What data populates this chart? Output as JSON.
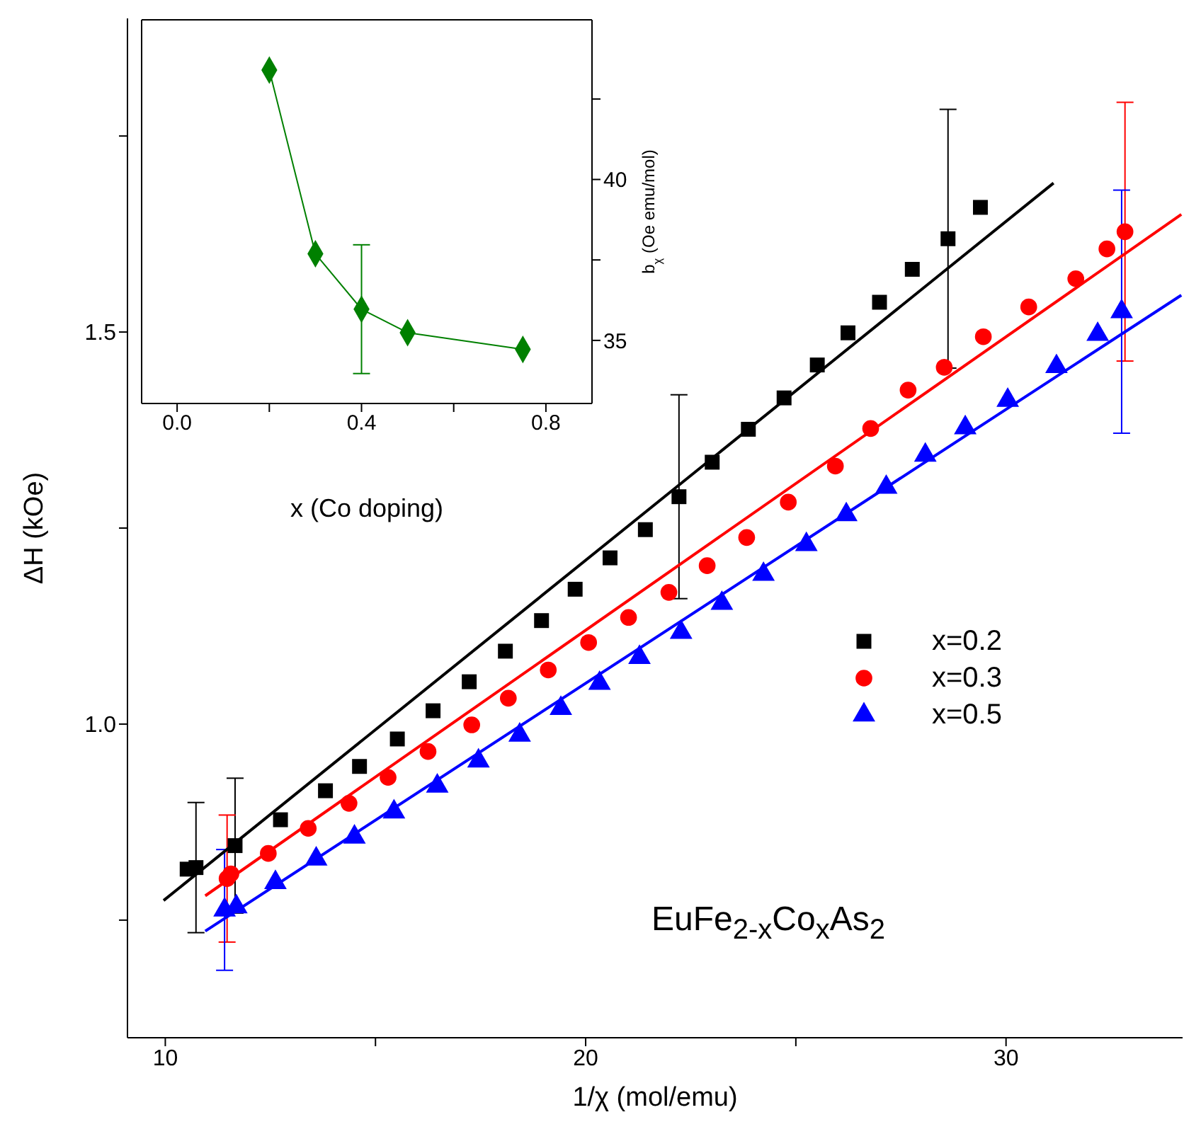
{
  "chart_data": [
    {
      "type": "scatter",
      "xlabel": "1/χ (mol/emu)",
      "ylabel": "ΔH (kOe)",
      "annotations": [
        "EuFe$_{2-x}$Co$_{x}$As$_{2}$"
      ],
      "xlim": [
        9.1,
        34.2
      ],
      "ylim": [
        0.6,
        1.9
      ],
      "xticks": [
        10,
        {
          "value": 15,
          "label": null
        },
        20,
        {
          "value": 25,
          "label": null
        },
        30
      ],
      "yticks": [
        {
          "value": 0.75,
          "label": null
        },
        {
          "value": 1.0,
          "label": "1.0"
        },
        {
          "value": 1.25,
          "label": null
        },
        {
          "value": 1.5,
          "label": "1.5"
        },
        {
          "value": 1.75,
          "label": null
        }
      ],
      "legend": "right",
      "series": [
        {
          "name": "x=0.2",
          "color": "#000000",
          "marker": "square",
          "x": [
            10.52,
            10.73,
            11.66,
            12.74,
            13.81,
            14.62,
            15.52,
            16.37,
            17.23,
            18.09,
            18.95,
            19.75,
            20.58,
            21.42,
            22.22,
            23.01,
            23.87,
            24.72,
            25.51,
            26.24,
            26.99,
            27.77,
            28.62,
            29.39
          ],
          "values": [
            0.815,
            0.817,
            0.845,
            0.878,
            0.915,
            0.946,
            0.981,
            1.017,
            1.054,
            1.093,
            1.132,
            1.172,
            1.212,
            1.248,
            1.29,
            1.334,
            1.376,
            1.416,
            1.458,
            1.499,
            1.538,
            1.58,
            1.619,
            1.659
          ],
          "errors": [
            null,
            0.083,
            0.086,
            null,
            null,
            null,
            null,
            null,
            null,
            null,
            null,
            null,
            null,
            null,
            0.13,
            null,
            null,
            null,
            null,
            null,
            null,
            null,
            0.165,
            null
          ]
        },
        {
          "name": "x=0.3",
          "color": "#ff0000",
          "marker": "circle",
          "x": [
            11.47,
            11.56,
            12.45,
            13.4,
            14.37,
            15.3,
            16.25,
            17.29,
            18.16,
            19.11,
            20.07,
            21.02,
            21.98,
            22.89,
            23.83,
            24.82,
            25.94,
            26.78,
            27.67,
            28.53,
            29.46,
            30.54,
            31.66,
            32.4,
            32.83
          ],
          "values": [
            0.803,
            0.809,
            0.835,
            0.867,
            0.899,
            0.932,
            0.965,
            0.999,
            1.033,
            1.069,
            1.104,
            1.136,
            1.168,
            1.202,
            1.238,
            1.283,
            1.329,
            1.377,
            1.426,
            1.455,
            1.494,
            1.532,
            1.568,
            1.606,
            1.628
          ],
          "errors": [
            0.081,
            null,
            null,
            null,
            null,
            null,
            null,
            null,
            null,
            null,
            null,
            null,
            null,
            null,
            null,
            null,
            null,
            null,
            null,
            null,
            null,
            null,
            null,
            null,
            0.165
          ]
        },
        {
          "name": "x=0.5",
          "color": "#0000ff",
          "marker": "triangle",
          "x": [
            11.41,
            11.69,
            12.62,
            13.59,
            14.5,
            15.44,
            16.47,
            17.45,
            18.43,
            19.41,
            20.33,
            21.28,
            22.27,
            23.24,
            24.23,
            25.25,
            26.2,
            27.15,
            28.08,
            29.03,
            30.04,
            31.2,
            32.18,
            32.75
          ],
          "values": [
            0.763,
            0.767,
            0.798,
            0.828,
            0.856,
            0.888,
            0.921,
            0.953,
            0.986,
            1.02,
            1.052,
            1.085,
            1.117,
            1.154,
            1.191,
            1.229,
            1.267,
            1.302,
            1.343,
            1.378,
            1.413,
            1.456,
            1.497,
            1.526
          ],
          "errors": [
            0.077,
            null,
            null,
            null,
            null,
            null,
            null,
            null,
            null,
            null,
            null,
            null,
            null,
            null,
            null,
            null,
            null,
            null,
            null,
            null,
            null,
            null,
            null,
            0.155
          ]
        },
        {
          "type": "line",
          "color": "#000000",
          "marker": "none",
          "x": [
            9.96,
            31.13
          ],
          "values": [
            0.775,
            1.69
          ]
        },
        {
          "type": "line",
          "color": "#ff0000",
          "marker": "none",
          "x": [
            10.95,
            34.17
          ],
          "values": [
            0.781,
            1.65
          ]
        },
        {
          "type": "line",
          "color": "#0000ff",
          "marker": "none",
          "x": [
            10.95,
            34.17
          ],
          "values": [
            0.736,
            1.547
          ]
        }
      ]
    },
    {
      "type": "line",
      "xlabel": "x (Co doping)",
      "ylabel": "b$_{χ}$ (Oe emu/mol)",
      "xlim": [
        -0.077,
        0.9
      ],
      "ylim": [
        33.04,
        44.96
      ],
      "xticks": [
        {
          "value": 0,
          "label": "0.0"
        },
        {
          "value": 0.2,
          "label": null
        },
        0.4,
        {
          "value": 0.6,
          "label": null
        },
        0.8
      ],
      "yticks": [
        35,
        {
          "value": 37.5,
          "label": null
        },
        40,
        {
          "value": 42.5,
          "label": null
        }
      ],
      "series": [
        {
          "color": "#008000",
          "marker": "diamond",
          "x": [
            0.2,
            0.3,
            0.4,
            0.5,
            0.75
          ],
          "values": [
            43.4,
            37.69,
            35.97,
            35.24,
            34.72
          ],
          "errors": [
            null,
            null,
            2,
            null,
            null
          ]
        }
      ]
    }
  ]
}
